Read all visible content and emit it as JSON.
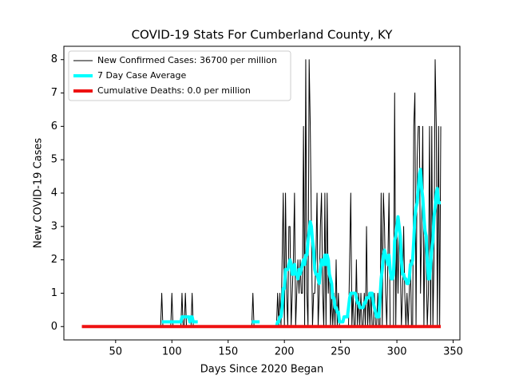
{
  "chart_data": {
    "type": "line",
    "title": "COVID-19 Stats For Cumberland County, KY",
    "x_label": "Days Since 2020 Began",
    "y_label": "New COVID-19 Cases",
    "xlim": [
      4,
      356
    ],
    "ylim": [
      -0.4,
      8.4
    ],
    "xticks": [
      50,
      100,
      150,
      200,
      250,
      300,
      350
    ],
    "yticks": [
      0,
      1,
      2,
      3,
      4,
      5,
      6,
      7,
      8
    ],
    "legend": "upper left",
    "x": [
      20,
      21,
      22,
      23,
      24,
      25,
      26,
      27,
      28,
      29,
      30,
      31,
      32,
      33,
      34,
      35,
      36,
      37,
      38,
      39,
      40,
      41,
      42,
      43,
      44,
      45,
      46,
      47,
      48,
      49,
      50,
      51,
      52,
      53,
      54,
      55,
      56,
      57,
      58,
      59,
      60,
      61,
      62,
      63,
      64,
      65,
      66,
      67,
      68,
      69,
      70,
      71,
      72,
      73,
      74,
      75,
      76,
      77,
      78,
      79,
      80,
      81,
      82,
      83,
      84,
      85,
      86,
      87,
      88,
      89,
      90,
      91,
      92,
      93,
      94,
      95,
      96,
      97,
      98,
      99,
      100,
      101,
      102,
      103,
      104,
      105,
      106,
      107,
      108,
      109,
      110,
      111,
      112,
      113,
      114,
      115,
      116,
      117,
      118,
      119,
      120,
      121,
      122,
      123,
      124,
      125,
      126,
      127,
      128,
      129,
      130,
      131,
      132,
      133,
      134,
      135,
      136,
      137,
      138,
      139,
      140,
      141,
      142,
      143,
      144,
      145,
      146,
      147,
      148,
      149,
      150,
      151,
      152,
      153,
      154,
      155,
      156,
      157,
      158,
      159,
      160,
      161,
      162,
      163,
      164,
      165,
      166,
      167,
      168,
      169,
      170,
      171,
      172,
      173,
      174,
      175,
      176,
      177,
      178,
      179,
      180,
      181,
      182,
      183,
      184,
      185,
      186,
      187,
      188,
      189,
      190,
      191,
      192,
      193,
      194,
      195,
      196,
      197,
      198,
      199,
      200,
      201,
      202,
      203,
      204,
      205,
      206,
      207,
      208,
      209,
      210,
      211,
      212,
      213,
      214,
      215,
      216,
      217,
      218,
      219,
      220,
      221,
      222,
      223,
      224,
      225,
      226,
      227,
      228,
      229,
      230,
      231,
      232,
      233,
      234,
      235,
      236,
      237,
      238,
      239,
      240,
      241,
      242,
      243,
      244,
      245,
      246,
      247,
      248,
      249,
      250,
      251,
      252,
      253,
      254,
      255,
      256,
      257,
      258,
      259,
      260,
      261,
      262,
      263,
      264,
      265,
      266,
      267,
      268,
      269,
      270,
      271,
      272,
      273,
      274,
      275,
      276,
      277,
      278,
      279,
      280,
      281,
      282,
      283,
      284,
      285,
      286,
      287,
      288,
      289,
      290,
      291,
      292,
      293,
      294,
      295,
      296,
      297,
      298,
      299,
      300,
      301,
      302,
      303,
      304,
      305,
      306,
      307,
      308,
      309,
      310,
      311,
      312,
      313,
      314,
      315,
      316,
      317,
      318,
      319,
      320,
      321,
      322,
      323,
      324,
      325,
      326,
      327,
      328,
      329,
      330,
      331,
      332,
      333,
      334,
      335,
      336,
      337,
      338,
      339
    ],
    "series": [
      {
        "name": "New Confirmed Cases: 36700 per million",
        "color": "#000000",
        "width": 1,
        "values": [
          0,
          0,
          0,
          0,
          0,
          0,
          0,
          0,
          0,
          0,
          0,
          0,
          0,
          0,
          0,
          0,
          0,
          0,
          0,
          0,
          0,
          0,
          0,
          0,
          0,
          0,
          0,
          0,
          0,
          0,
          0,
          0,
          0,
          0,
          0,
          0,
          0,
          0,
          0,
          0,
          0,
          0,
          0,
          0,
          0,
          0,
          0,
          0,
          0,
          0,
          0,
          0,
          0,
          0,
          0,
          0,
          0,
          0,
          0,
          0,
          0,
          0,
          0,
          0,
          0,
          0,
          0,
          0,
          0,
          0,
          0,
          1,
          0,
          0,
          0,
          0,
          0,
          0,
          0,
          0,
          1,
          0,
          0,
          0,
          0,
          0,
          0,
          0,
          0,
          1,
          0,
          0,
          1,
          0,
          0,
          0,
          0,
          0,
          1,
          0,
          0,
          0,
          0,
          0,
          0,
          0,
          0,
          0,
          0,
          0,
          0,
          0,
          0,
          0,
          0,
          0,
          0,
          0,
          0,
          0,
          0,
          0,
          0,
          0,
          0,
          0,
          0,
          0,
          0,
          0,
          0,
          0,
          0,
          0,
          0,
          0,
          0,
          0,
          0,
          0,
          0,
          0,
          0,
          0,
          0,
          0,
          0,
          0,
          0,
          0,
          0,
          0,
          1,
          0,
          0,
          0,
          0,
          0,
          0,
          0,
          0,
          0,
          0,
          0,
          0,
          0,
          0,
          0,
          0,
          0,
          0,
          0,
          0,
          0,
          1,
          0,
          1,
          0,
          2,
          4,
          0,
          4,
          1,
          0,
          3,
          3,
          0,
          1,
          2,
          4,
          0,
          1,
          2,
          1,
          2,
          1,
          1,
          6,
          0,
          8,
          1,
          0,
          8,
          6,
          3,
          0,
          1,
          1,
          2,
          4,
          0,
          1,
          3,
          4,
          1,
          0,
          4,
          0,
          4,
          1,
          2,
          0,
          1,
          0,
          1,
          0,
          2,
          0,
          1,
          0,
          0,
          0,
          0,
          0,
          0,
          0,
          0,
          0,
          2,
          4,
          0,
          1,
          0,
          0,
          2,
          0,
          1,
          0,
          1,
          0,
          0,
          1,
          0,
          3,
          0,
          1,
          0,
          1,
          0,
          0,
          1,
          0,
          0,
          1,
          0,
          0,
          4,
          0,
          4,
          3,
          1,
          0,
          2,
          4,
          0,
          0,
          0,
          0,
          7,
          0,
          3,
          1,
          3,
          2,
          0,
          1,
          3,
          1,
          0,
          1,
          0,
          1,
          2,
          0,
          0,
          6,
          7,
          0,
          5,
          6,
          6,
          1,
          3,
          6,
          0,
          3,
          2,
          0,
          1,
          6,
          0,
          6,
          0,
          2,
          8,
          6,
          0,
          6,
          0,
          6
        ]
      },
      {
        "name": "7 Day Case Average",
        "color": "#00ffff",
        "width": 4,
        "values": [
          null,
          null,
          null,
          null,
          null,
          null,
          null,
          null,
          null,
          null,
          null,
          null,
          null,
          null,
          null,
          null,
          null,
          null,
          null,
          null,
          null,
          null,
          null,
          null,
          null,
          null,
          null,
          null,
          null,
          null,
          null,
          null,
          null,
          null,
          null,
          null,
          null,
          null,
          null,
          null,
          null,
          null,
          null,
          null,
          null,
          null,
          null,
          null,
          null,
          null,
          null,
          null,
          null,
          null,
          null,
          null,
          null,
          null,
          null,
          null,
          null,
          null,
          null,
          null,
          null,
          null,
          null,
          null,
          null,
          null,
          null,
          0.14,
          0.14,
          0.14,
          0.14,
          0.14,
          0.14,
          0.14,
          0.14,
          0.14,
          0.14,
          0.14,
          0.14,
          0.14,
          0.14,
          0.14,
          0.14,
          0.14,
          0.14,
          0.29,
          0.29,
          0.29,
          0.29,
          0.29,
          0.29,
          0.29,
          0.14,
          0.29,
          0.29,
          0.14,
          0.14,
          0.14,
          0.14,
          0.14,
          null,
          null,
          null,
          null,
          null,
          null,
          null,
          null,
          null,
          null,
          null,
          null,
          null,
          null,
          null,
          null,
          null,
          null,
          null,
          null,
          null,
          null,
          null,
          null,
          null,
          null,
          null,
          null,
          null,
          null,
          null,
          null,
          null,
          null,
          null,
          null,
          null,
          null,
          null,
          null,
          null,
          null,
          null,
          null,
          null,
          null,
          null,
          0.14,
          0.14,
          0.14,
          0.14,
          0.14,
          0.14,
          0.14,
          0.14,
          null,
          null,
          null,
          null,
          null,
          null,
          null,
          null,
          null,
          null,
          null,
          null,
          null,
          null,
          0,
          0.14,
          0.14,
          0.29,
          0.29,
          0.57,
          1.14,
          1.14,
          1.71,
          1.71,
          1.71,
          1.86,
          2,
          1.86,
          1.57,
          1.57,
          1.86,
          1.57,
          1.57,
          1.43,
          1.71,
          1.57,
          1.71,
          1.86,
          2,
          1.86,
          2.14,
          2.14,
          2.57,
          2.86,
          3.14,
          3,
          2.57,
          2.29,
          1.71,
          1.57,
          1.57,
          1.43,
          1.29,
          1.71,
          2,
          1.86,
          1.86,
          2.14,
          1.86,
          2.14,
          2,
          1.57,
          1.43,
          1.29,
          0.86,
          0.86,
          0.57,
          0.57,
          0.43,
          0.43,
          0.14,
          0.14,
          0.14,
          0.14,
          0.29,
          0.29,
          0.29,
          0.29,
          0.57,
          0.86,
          1,
          1,
          1,
          1,
          1,
          0.86,
          0.71,
          0.71,
          0.57,
          0.57,
          0.57,
          0.57,
          0.71,
          0.71,
          0.86,
          0.86,
          0.86,
          1,
          1,
          1,
          0.71,
          0.57,
          0.43,
          0.29,
          0.29,
          0.29,
          0.86,
          1.43,
          1.71,
          2.14,
          2.29,
          2.14,
          2,
          1.86,
          2.14,
          1.71,
          1.43,
          1.43,
          1.57,
          2.57,
          2.71,
          3,
          3.29,
          3,
          2.71,
          2,
          1.57,
          1.57,
          1.43,
          1.43,
          1.29,
          1.29,
          1.43,
          1.86,
          1.86,
          2,
          2.57,
          3.29,
          3.57,
          3.71,
          4.14,
          4.57,
          4.71,
          4.14,
          3.86,
          3.29,
          2.86,
          2.71,
          2,
          1.43,
          1.43,
          1.86,
          2.29,
          2.57,
          3.29,
          3.57,
          4,
          4.14,
          3.71,
          3.71,
          3.71
        ]
      },
      {
        "name": "Cumulative Deaths: 0.0 per million",
        "color": "#ee1111",
        "width": 4,
        "values": [
          0,
          0,
          0,
          0,
          0,
          0,
          0,
          0,
          0,
          0,
          0,
          0,
          0,
          0,
          0,
          0,
          0,
          0,
          0,
          0,
          0,
          0,
          0,
          0,
          0,
          0,
          0,
          0,
          0,
          0,
          0,
          0,
          0,
          0,
          0,
          0,
          0,
          0,
          0,
          0,
          0,
          0,
          0,
          0,
          0,
          0,
          0,
          0,
          0,
          0,
          0,
          0,
          0,
          0,
          0,
          0,
          0,
          0,
          0,
          0,
          0,
          0,
          0,
          0,
          0,
          0,
          0,
          0,
          0,
          0,
          0,
          0,
          0,
          0,
          0,
          0,
          0,
          0,
          0,
          0,
          0,
          0,
          0,
          0,
          0,
          0,
          0,
          0,
          0,
          0,
          0,
          0,
          0,
          0,
          0,
          0,
          0,
          0,
          0,
          0,
          0,
          0,
          0,
          0,
          0,
          0,
          0,
          0,
          0,
          0,
          0,
          0,
          0,
          0,
          0,
          0,
          0,
          0,
          0,
          0,
          0,
          0,
          0,
          0,
          0,
          0,
          0,
          0,
          0,
          0,
          0,
          0,
          0,
          0,
          0,
          0,
          0,
          0,
          0,
          0,
          0,
          0,
          0,
          0,
          0,
          0,
          0,
          0,
          0,
          0,
          0,
          0,
          0,
          0,
          0,
          0,
          0,
          0,
          0,
          0,
          0,
          0,
          0,
          0,
          0,
          0,
          0,
          0,
          0,
          0,
          0,
          0,
          0,
          0,
          0,
          0,
          0,
          0,
          0,
          0,
          0,
          0,
          0,
          0,
          0,
          0,
          0,
          0,
          0,
          0,
          0,
          0,
          0,
          0,
          0,
          0,
          0,
          0,
          0,
          0,
          0,
          0,
          0,
          0,
          0,
          0,
          0,
          0,
          0,
          0,
          0,
          0,
          0,
          0,
          0,
          0,
          0,
          0,
          0,
          0,
          0,
          0,
          0,
          0,
          0,
          0,
          0,
          0,
          0,
          0,
          0,
          0,
          0,
          0,
          0,
          0,
          0,
          0,
          0,
          0,
          0,
          0,
          0,
          0,
          0,
          0,
          0,
          0,
          0,
          0,
          0,
          0,
          0,
          0,
          0,
          0,
          0,
          0,
          0,
          0,
          0,
          0,
          0,
          0,
          0,
          0,
          0,
          0,
          0,
          0,
          0,
          0,
          0,
          0,
          0,
          0,
          0,
          0,
          0,
          0,
          0,
          0,
          0,
          0,
          0,
          0,
          0,
          0,
          0,
          0,
          0,
          0,
          0,
          0,
          0,
          0,
          0,
          0,
          0,
          0,
          0,
          0,
          0,
          0,
          0,
          0,
          0,
          0,
          0,
          0,
          0,
          0,
          0,
          0,
          0,
          0,
          0,
          0,
          0,
          0
        ]
      }
    ]
  }
}
